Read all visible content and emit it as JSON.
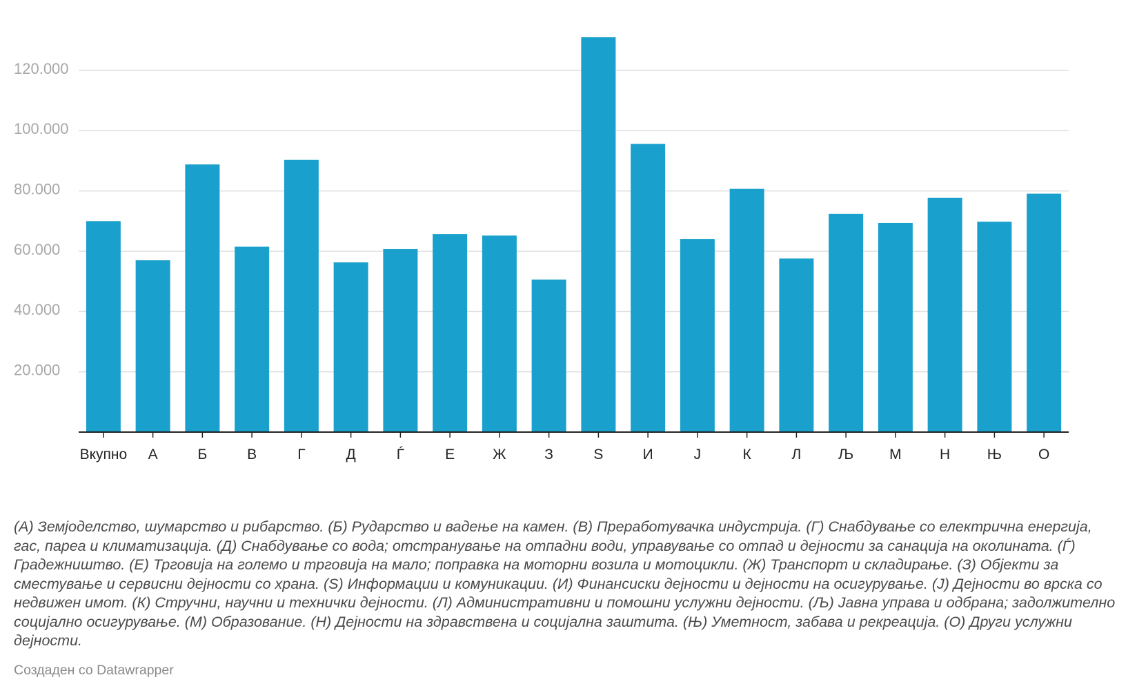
{
  "chart_data": {
    "type": "bar",
    "title": "",
    "xlabel": "",
    "ylabel": "",
    "categories": [
      "Вкупно",
      "А",
      "Б",
      "В",
      "Г",
      "Д",
      "Ѓ",
      "Е",
      "Ж",
      "З",
      "S",
      "И",
      "Ј",
      "К",
      "Л",
      "Љ",
      "М",
      "Н",
      "Њ",
      "О"
    ],
    "values": [
      70000,
      57000,
      88800,
      61500,
      90300,
      56300,
      60700,
      65700,
      65200,
      50600,
      131000,
      95600,
      64100,
      80700,
      57600,
      72400,
      69400,
      77700,
      69800,
      79100
    ],
    "ylim": [
      0,
      132000
    ],
    "yticks": [
      20000,
      40000,
      60000,
      80000,
      100000,
      120000
    ],
    "ytick_labels": [
      "20.000",
      "40.000",
      "60.000",
      "80.000",
      "100.000",
      "120.000"
    ],
    "grid": true,
    "bar_color": "#1aa0cc"
  },
  "notes": "(А) Земјоделство, шумарство и рибарство. (Б) Рударство и вадење на камен. (В) Преработувачка индустрија. (Г) Снабдување со електрична енергија, гас, пареа и климатизација. (Д) Снабдување со вода; отстранување на отпадни води, управување со отпад и дејности за санација на околината. (Ѓ) Градежништво. (Е) Трговија на големо и трговија на мало; поправка на моторни возила и мотоцикли. (Ж) Транспорт и складирање. (З) Објекти за сместување и сервисни дејности со храна. (S) Информации и комуникации. (И) Финансиски дејности и дејности на осигурување. (Ј) Дејности во врска со недвижен имот. (К) Стручни, научни и технички дејности. (Л) Административни и помошни услужни дејности. (Љ) Јавна управа и одбрана; задолжително социјално осигурување. (М) Образование. (Н) Дејности на здравствена и социјална заштита. (Њ) Уметност, забава и рекреација. (О) Други услужни дејности.",
  "credit": "Создаден со Datawrapper"
}
